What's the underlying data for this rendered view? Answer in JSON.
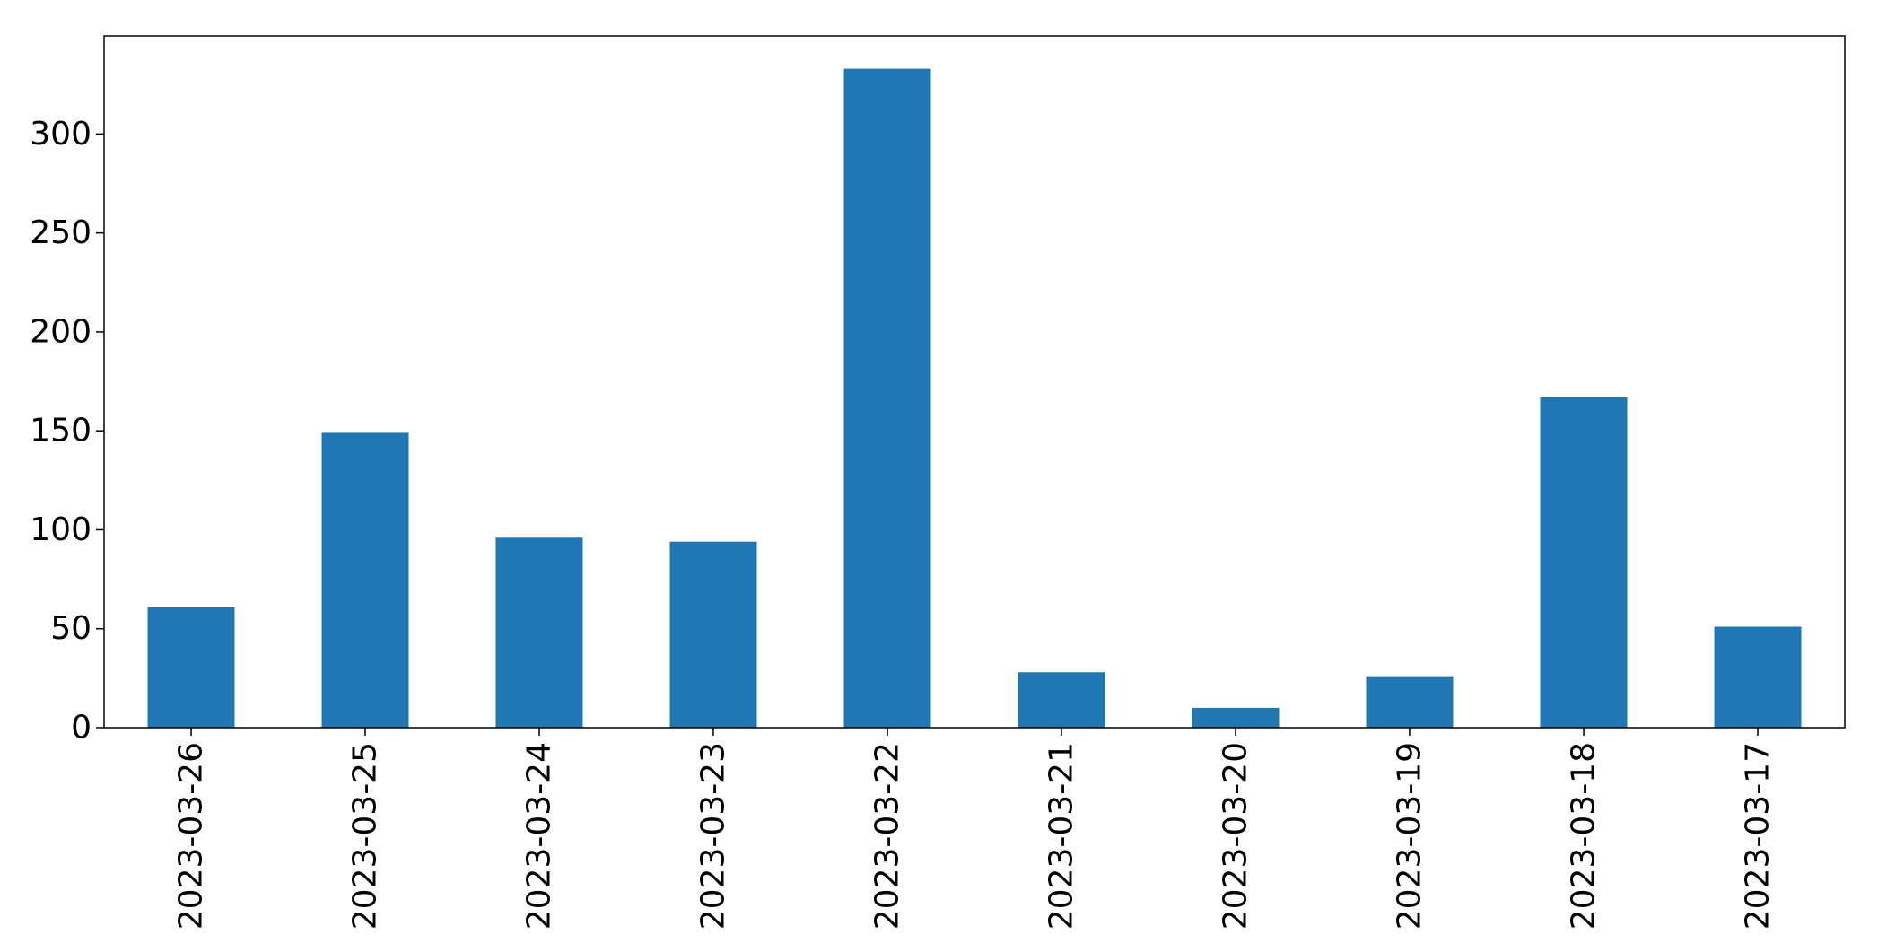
{
  "chart_data": {
    "type": "bar",
    "title": "",
    "xlabel": "",
    "ylabel": "",
    "categories": [
      "2023-03-26",
      "2023-03-25",
      "2023-03-24",
      "2023-03-23",
      "2023-03-22",
      "2023-03-21",
      "2023-03-20",
      "2023-03-19",
      "2023-03-18",
      "2023-03-17"
    ],
    "values": [
      61,
      149,
      96,
      94,
      333,
      28,
      10,
      26,
      167,
      51
    ],
    "ylim": [
      0,
      349.6
    ],
    "yticks": [
      0,
      50,
      100,
      150,
      200,
      250,
      300
    ],
    "ytick_labels": [
      "0",
      "50",
      "100",
      "150",
      "200",
      "250",
      "300"
    ],
    "bar_color": "#1f77b4",
    "grid": false,
    "legend": "none"
  }
}
